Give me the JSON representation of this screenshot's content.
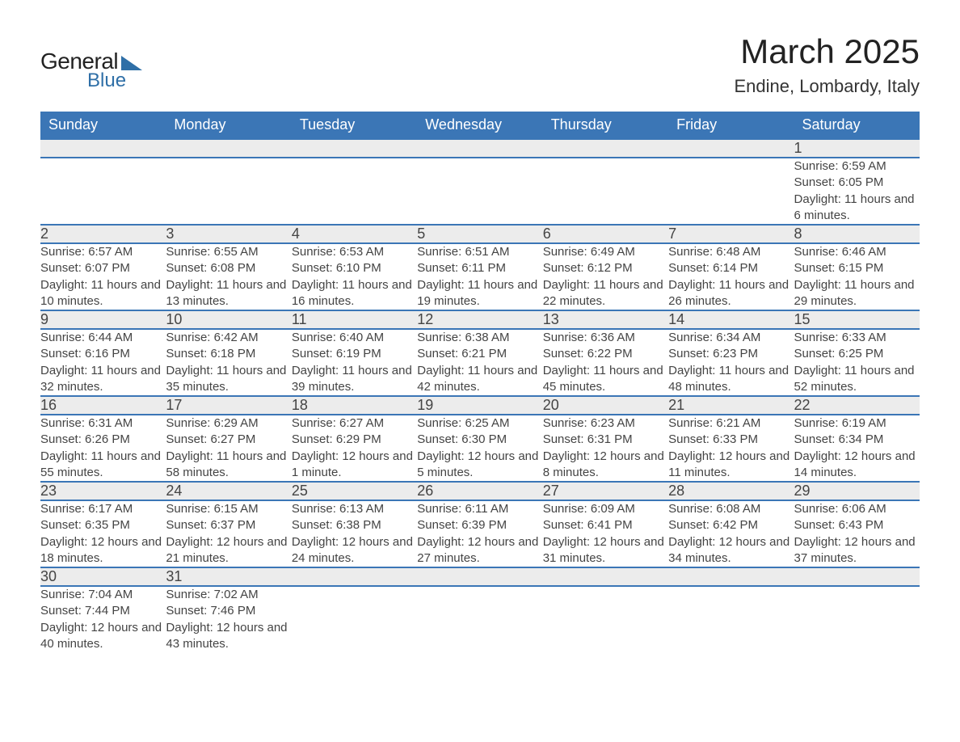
{
  "brand": {
    "part1": "General",
    "part2": "Blue",
    "text_color": "#222222",
    "accent_color": "#2f6fa7"
  },
  "title": "March 2025",
  "location": "Endine, Lombardy, Italy",
  "header_bg": "#3b76b6",
  "header_fg": "#ffffff",
  "daynum_bg": "#ececec",
  "row_border_color": "#3b76b6",
  "text_color": "#444444",
  "background_color": "#ffffff",
  "title_fontsize": 42,
  "location_fontsize": 22,
  "header_fontsize": 18,
  "daynum_fontsize": 18,
  "detail_fontsize": 15,
  "days_of_week": [
    "Sunday",
    "Monday",
    "Tuesday",
    "Wednesday",
    "Thursday",
    "Friday",
    "Saturday"
  ],
  "weeks": [
    [
      null,
      null,
      null,
      null,
      null,
      null,
      {
        "n": "1",
        "sunrise": "Sunrise: 6:59 AM",
        "sunset": "Sunset: 6:05 PM",
        "daylight": "Daylight: 11 hours and 6 minutes."
      }
    ],
    [
      {
        "n": "2",
        "sunrise": "Sunrise: 6:57 AM",
        "sunset": "Sunset: 6:07 PM",
        "daylight": "Daylight: 11 hours and 10 minutes."
      },
      {
        "n": "3",
        "sunrise": "Sunrise: 6:55 AM",
        "sunset": "Sunset: 6:08 PM",
        "daylight": "Daylight: 11 hours and 13 minutes."
      },
      {
        "n": "4",
        "sunrise": "Sunrise: 6:53 AM",
        "sunset": "Sunset: 6:10 PM",
        "daylight": "Daylight: 11 hours and 16 minutes."
      },
      {
        "n": "5",
        "sunrise": "Sunrise: 6:51 AM",
        "sunset": "Sunset: 6:11 PM",
        "daylight": "Daylight: 11 hours and 19 minutes."
      },
      {
        "n": "6",
        "sunrise": "Sunrise: 6:49 AM",
        "sunset": "Sunset: 6:12 PM",
        "daylight": "Daylight: 11 hours and 22 minutes."
      },
      {
        "n": "7",
        "sunrise": "Sunrise: 6:48 AM",
        "sunset": "Sunset: 6:14 PM",
        "daylight": "Daylight: 11 hours and 26 minutes."
      },
      {
        "n": "8",
        "sunrise": "Sunrise: 6:46 AM",
        "sunset": "Sunset: 6:15 PM",
        "daylight": "Daylight: 11 hours and 29 minutes."
      }
    ],
    [
      {
        "n": "9",
        "sunrise": "Sunrise: 6:44 AM",
        "sunset": "Sunset: 6:16 PM",
        "daylight": "Daylight: 11 hours and 32 minutes."
      },
      {
        "n": "10",
        "sunrise": "Sunrise: 6:42 AM",
        "sunset": "Sunset: 6:18 PM",
        "daylight": "Daylight: 11 hours and 35 minutes."
      },
      {
        "n": "11",
        "sunrise": "Sunrise: 6:40 AM",
        "sunset": "Sunset: 6:19 PM",
        "daylight": "Daylight: 11 hours and 39 minutes."
      },
      {
        "n": "12",
        "sunrise": "Sunrise: 6:38 AM",
        "sunset": "Sunset: 6:21 PM",
        "daylight": "Daylight: 11 hours and 42 minutes."
      },
      {
        "n": "13",
        "sunrise": "Sunrise: 6:36 AM",
        "sunset": "Sunset: 6:22 PM",
        "daylight": "Daylight: 11 hours and 45 minutes."
      },
      {
        "n": "14",
        "sunrise": "Sunrise: 6:34 AM",
        "sunset": "Sunset: 6:23 PM",
        "daylight": "Daylight: 11 hours and 48 minutes."
      },
      {
        "n": "15",
        "sunrise": "Sunrise: 6:33 AM",
        "sunset": "Sunset: 6:25 PM",
        "daylight": "Daylight: 11 hours and 52 minutes."
      }
    ],
    [
      {
        "n": "16",
        "sunrise": "Sunrise: 6:31 AM",
        "sunset": "Sunset: 6:26 PM",
        "daylight": "Daylight: 11 hours and 55 minutes."
      },
      {
        "n": "17",
        "sunrise": "Sunrise: 6:29 AM",
        "sunset": "Sunset: 6:27 PM",
        "daylight": "Daylight: 11 hours and 58 minutes."
      },
      {
        "n": "18",
        "sunrise": "Sunrise: 6:27 AM",
        "sunset": "Sunset: 6:29 PM",
        "daylight": "Daylight: 12 hours and 1 minute."
      },
      {
        "n": "19",
        "sunrise": "Sunrise: 6:25 AM",
        "sunset": "Sunset: 6:30 PM",
        "daylight": "Daylight: 12 hours and 5 minutes."
      },
      {
        "n": "20",
        "sunrise": "Sunrise: 6:23 AM",
        "sunset": "Sunset: 6:31 PM",
        "daylight": "Daylight: 12 hours and 8 minutes."
      },
      {
        "n": "21",
        "sunrise": "Sunrise: 6:21 AM",
        "sunset": "Sunset: 6:33 PM",
        "daylight": "Daylight: 12 hours and 11 minutes."
      },
      {
        "n": "22",
        "sunrise": "Sunrise: 6:19 AM",
        "sunset": "Sunset: 6:34 PM",
        "daylight": "Daylight: 12 hours and 14 minutes."
      }
    ],
    [
      {
        "n": "23",
        "sunrise": "Sunrise: 6:17 AM",
        "sunset": "Sunset: 6:35 PM",
        "daylight": "Daylight: 12 hours and 18 minutes."
      },
      {
        "n": "24",
        "sunrise": "Sunrise: 6:15 AM",
        "sunset": "Sunset: 6:37 PM",
        "daylight": "Daylight: 12 hours and 21 minutes."
      },
      {
        "n": "25",
        "sunrise": "Sunrise: 6:13 AM",
        "sunset": "Sunset: 6:38 PM",
        "daylight": "Daylight: 12 hours and 24 minutes."
      },
      {
        "n": "26",
        "sunrise": "Sunrise: 6:11 AM",
        "sunset": "Sunset: 6:39 PM",
        "daylight": "Daylight: 12 hours and 27 minutes."
      },
      {
        "n": "27",
        "sunrise": "Sunrise: 6:09 AM",
        "sunset": "Sunset: 6:41 PM",
        "daylight": "Daylight: 12 hours and 31 minutes."
      },
      {
        "n": "28",
        "sunrise": "Sunrise: 6:08 AM",
        "sunset": "Sunset: 6:42 PM",
        "daylight": "Daylight: 12 hours and 34 minutes."
      },
      {
        "n": "29",
        "sunrise": "Sunrise: 6:06 AM",
        "sunset": "Sunset: 6:43 PM",
        "daylight": "Daylight: 12 hours and 37 minutes."
      }
    ],
    [
      {
        "n": "30",
        "sunrise": "Sunrise: 7:04 AM",
        "sunset": "Sunset: 7:44 PM",
        "daylight": "Daylight: 12 hours and 40 minutes."
      },
      {
        "n": "31",
        "sunrise": "Sunrise: 7:02 AM",
        "sunset": "Sunset: 7:46 PM",
        "daylight": "Daylight: 12 hours and 43 minutes."
      },
      null,
      null,
      null,
      null,
      null
    ]
  ]
}
